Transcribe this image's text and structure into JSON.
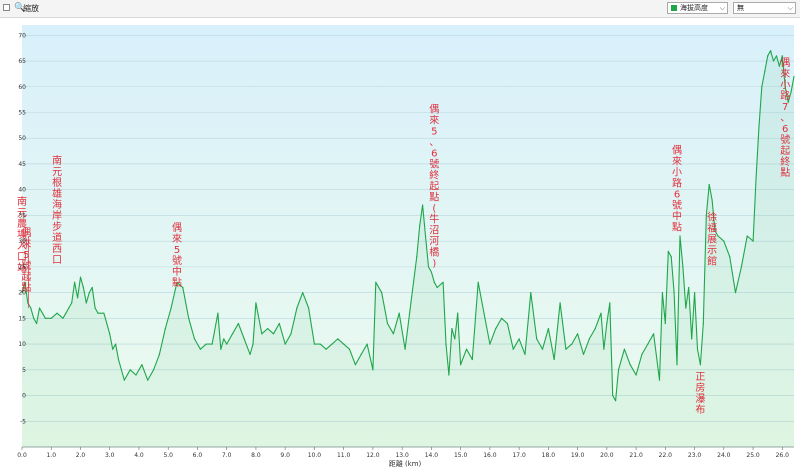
{
  "toolbar": {
    "zoom_icon": "🔍",
    "zoom_label": "縮放",
    "series_select_value": "海拔高度",
    "series_swatch_color": "#1fa64a",
    "extra_select_value": "無"
  },
  "chart_data": {
    "type": "area",
    "xlabel": "距離 (km)",
    "ylabel": "",
    "xlim": [
      0,
      26.4
    ],
    "ylim": [
      -10,
      72
    ],
    "x_ticks": [
      "0.0",
      "1.0",
      "2.0",
      "3.0",
      "4.0",
      "5.0",
      "6.0",
      "7.0",
      "8.0",
      "9.0",
      "10.0",
      "11.0",
      "12.0",
      "13.0",
      "14.0",
      "15.0",
      "16.0",
      "17.0",
      "18.0",
      "19.0",
      "20.0",
      "21.0",
      "22.0",
      "23.0",
      "24.0",
      "25.0",
      "26.0"
    ],
    "y_ticks": [
      "-5",
      "0",
      "5",
      "10",
      "15",
      "20",
      "25",
      "30",
      "35",
      "40",
      "45",
      "50",
      "55",
      "60",
      "65",
      "70"
    ],
    "series": [
      {
        "name": "海拔高度",
        "color": "#1fa64a",
        "x": [
          0.0,
          0.1,
          0.2,
          0.3,
          0.4,
          0.5,
          0.6,
          0.8,
          1.0,
          1.2,
          1.4,
          1.5,
          1.6,
          1.7,
          1.8,
          1.9,
          2.0,
          2.1,
          2.2,
          2.3,
          2.4,
          2.5,
          2.6,
          2.8,
          3.0,
          3.1,
          3.2,
          3.3,
          3.5,
          3.7,
          3.9,
          4.1,
          4.3,
          4.5,
          4.7,
          4.9,
          5.1,
          5.3,
          5.5,
          5.7,
          5.9,
          6.1,
          6.3,
          6.5,
          6.7,
          6.8,
          6.9,
          7.0,
          7.2,
          7.4,
          7.6,
          7.8,
          7.9,
          8.0,
          8.2,
          8.4,
          8.6,
          8.8,
          9.0,
          9.2,
          9.4,
          9.6,
          9.8,
          10.0,
          10.2,
          10.4,
          10.6,
          10.8,
          11.0,
          11.2,
          11.4,
          11.6,
          11.8,
          12.0,
          12.1,
          12.3,
          12.5,
          12.7,
          12.9,
          13.1,
          13.3,
          13.5,
          13.6,
          13.7,
          13.8,
          13.9,
          14.0,
          14.1,
          14.2,
          14.4,
          14.5,
          14.6,
          14.7,
          14.8,
          14.9,
          15.0,
          15.2,
          15.4,
          15.6,
          15.8,
          16.0,
          16.2,
          16.4,
          16.6,
          16.8,
          17.0,
          17.2,
          17.4,
          17.6,
          17.8,
          18.0,
          18.2,
          18.4,
          18.6,
          18.8,
          19.0,
          19.2,
          19.4,
          19.6,
          19.8,
          19.9,
          20.0,
          20.1,
          20.2,
          20.3,
          20.4,
          20.6,
          20.8,
          21.0,
          21.2,
          21.4,
          21.6,
          21.8,
          21.9,
          22.0,
          22.1,
          22.2,
          22.3,
          22.4,
          22.5,
          22.6,
          22.7,
          22.8,
          22.9,
          23.0,
          23.1,
          23.2,
          23.3,
          23.4,
          23.5,
          23.6,
          23.7,
          23.8,
          24.0,
          24.2,
          24.4,
          24.6,
          24.8,
          25.0,
          25.1,
          25.2,
          25.3,
          25.4,
          25.5,
          25.6,
          25.7,
          25.8,
          25.9,
          26.0,
          26.1,
          26.2,
          26.3,
          26.4
        ],
        "values": [
          20,
          22,
          18,
          17,
          15,
          14,
          17,
          15,
          15,
          16,
          15,
          16,
          17,
          18,
          22,
          19,
          23,
          21,
          18,
          20,
          21,
          17,
          16,
          16,
          12,
          9,
          10,
          7,
          3,
          5,
          4,
          6,
          3,
          5,
          8,
          13,
          17,
          22,
          21,
          15,
          11,
          9,
          10,
          10,
          16,
          9,
          11,
          10,
          12,
          14,
          11,
          8,
          10,
          18,
          12,
          13,
          12,
          14,
          10,
          12,
          17,
          20,
          17,
          10,
          10,
          9,
          10,
          11,
          10,
          9,
          6,
          8,
          10,
          5,
          22,
          20,
          14,
          12,
          16,
          9,
          18,
          27,
          33,
          37,
          31,
          25,
          24,
          22,
          21,
          22,
          10,
          4,
          13,
          11,
          16,
          6,
          9,
          7,
          22,
          16,
          10,
          13,
          15,
          14,
          9,
          11,
          8,
          20,
          11,
          9,
          13,
          7,
          18,
          9,
          10,
          12,
          8,
          11,
          13,
          16,
          9,
          14,
          18,
          0,
          -1,
          5,
          9,
          6,
          4,
          8,
          10,
          12,
          3,
          20,
          14,
          28,
          27,
          20,
          6,
          31,
          25,
          17,
          21,
          11,
          20,
          9,
          6,
          14,
          35,
          41,
          38,
          32,
          31,
          30,
          27,
          20,
          25,
          31,
          30,
          42,
          52,
          60,
          63,
          66,
          67,
          65,
          66,
          64,
          66,
          60,
          57,
          59,
          62
        ]
      }
    ],
    "annotations": [
      {
        "text": "南元農場入口站",
        "x": 0.0,
        "y": 37,
        "stroke": false
      },
      {
        "text": "偶來5號起點",
        "x": 0.15,
        "y": 31,
        "stroke": true,
        "stroke_to": 17
      },
      {
        "text": "南元根雄海岸步道西口",
        "x": 1.2,
        "y": 45,
        "stroke": false
      },
      {
        "text": "偶來5號中點",
        "x": 5.3,
        "y": 32,
        "stroke": false
      },
      {
        "text": "偶來5、6號終起點(牛沼河橋)",
        "x": 14.1,
        "y": 55,
        "stroke": false
      },
      {
        "text": "偶來小路6號中點",
        "x": 22.4,
        "y": 47,
        "stroke": false
      },
      {
        "text": "徐福展示館",
        "x": 23.6,
        "y": 34,
        "stroke": false
      },
      {
        "text": "正房瀑布",
        "x": 23.2,
        "y": 3,
        "stroke": false
      },
      {
        "text": "偶來小路7、6號起終點",
        "x": 26.1,
        "y": 64,
        "stroke": false
      }
    ],
    "grid": true,
    "legend": "none"
  }
}
